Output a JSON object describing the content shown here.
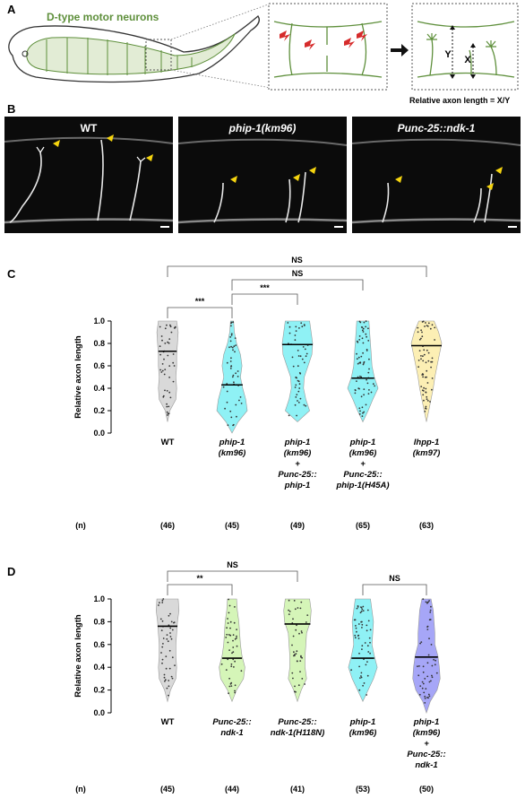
{
  "panels": {
    "a": {
      "letter": "A",
      "title": "D-type motor neurons",
      "caption": "Relative axon length = X/Y",
      "labels": {
        "y": "Y",
        "x": "X"
      }
    },
    "b": {
      "letter": "B",
      "images": [
        {
          "label": "WT"
        },
        {
          "label": "phip-1(km96)"
        },
        {
          "label": "Punc-25::ndk-1"
        }
      ]
    },
    "c": {
      "letter": "C"
    },
    "d": {
      "letter": "D"
    }
  },
  "chart_data": [
    {
      "type": "violin",
      "panel": "C",
      "ylabel": "Relative axon length",
      "ylim": [
        0,
        1.0
      ],
      "yticks": [
        "0.0",
        "0.2",
        "0.4",
        "0.6",
        "0.8",
        "1.0"
      ],
      "n_label": "(n)",
      "groups": [
        {
          "label_lines": [
            "WT"
          ],
          "italic": false,
          "n": "(46)",
          "median": 0.73,
          "color": "#d9d9d9"
        },
        {
          "label_lines": [
            "phip-1",
            "(km96)"
          ],
          "italic": true,
          "n": "(45)",
          "median": 0.43,
          "color": "#8ff1f5"
        },
        {
          "label_lines": [
            "phip-1",
            "(km96)",
            "+",
            "Punc-25::",
            "phip-1"
          ],
          "italic": true,
          "n": "(49)",
          "median": 0.79,
          "color": "#8ff1f5"
        },
        {
          "label_lines": [
            "phip-1",
            "(km96)",
            "+",
            "Punc-25::",
            "phip-1(H45A)"
          ],
          "italic": true,
          "n": "(65)",
          "median": 0.49,
          "color": "#8ff1f5"
        },
        {
          "label_lines": [
            "lhpp-1",
            "(km97)"
          ],
          "italic": true,
          "n": "(63)",
          "median": 0.78,
          "color": "#fcefb4"
        }
      ],
      "comparisons": [
        {
          "a": 0,
          "b": 1,
          "label": "***"
        },
        {
          "a": 1,
          "b": 2,
          "label": "***"
        },
        {
          "a": 1,
          "b": 3,
          "label": "NS"
        },
        {
          "a": 0,
          "b": 4,
          "label": "NS"
        }
      ]
    },
    {
      "type": "violin",
      "panel": "D",
      "ylabel": "Relative axon length",
      "ylim": [
        0,
        1.0
      ],
      "yticks": [
        "0.0",
        "0.2",
        "0.4",
        "0.6",
        "0.8",
        "1.0"
      ],
      "n_label": "(n)",
      "groups": [
        {
          "label_lines": [
            "WT"
          ],
          "italic": false,
          "n": "(45)",
          "median": 0.76,
          "color": "#d9d9d9"
        },
        {
          "label_lines": [
            "Punc-25::",
            "ndk-1"
          ],
          "italic": true,
          "n": "(44)",
          "median": 0.48,
          "color": "#d5f5b8"
        },
        {
          "label_lines": [
            "Punc-25::",
            "ndk-1(H118N)"
          ],
          "italic": true,
          "n": "(41)",
          "median": 0.78,
          "color": "#d5f5b8"
        },
        {
          "label_lines": [
            "phip-1",
            "(km96)"
          ],
          "italic": true,
          "n": "(53)",
          "median": 0.48,
          "color": "#8ff1f5"
        },
        {
          "label_lines": [
            "phip-1",
            "(km96)",
            "+",
            "Punc-25::",
            "ndk-1"
          ],
          "italic": true,
          "n": "(50)",
          "median": 0.49,
          "color": "#a6a6f7"
        }
      ],
      "comparisons": [
        {
          "a": 0,
          "b": 1,
          "label": "**"
        },
        {
          "a": 0,
          "b": 2,
          "label": "NS"
        },
        {
          "a": 3,
          "b": 4,
          "label": "NS"
        }
      ]
    }
  ]
}
